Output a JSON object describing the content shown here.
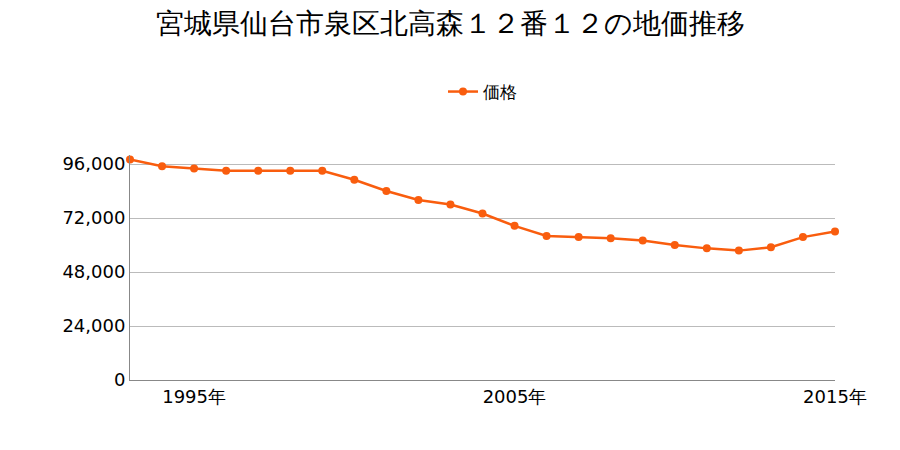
{
  "chart_data": {
    "type": "line",
    "title": "宮城県仙台市泉区北高森１２番１２の地価推移",
    "x": [
      1993,
      1994,
      1995,
      1996,
      1997,
      1998,
      1999,
      2000,
      2001,
      2002,
      2003,
      2004,
      2005,
      2006,
      2007,
      2008,
      2009,
      2010,
      2011,
      2012,
      2013,
      2014,
      2015
    ],
    "series": [
      {
        "name": "価格",
        "color": "#f95d0e",
        "marker": "circle",
        "values": [
          98000,
          95000,
          94000,
          93000,
          93000,
          93000,
          93000,
          89000,
          84000,
          80000,
          78000,
          74000,
          68500,
          64000,
          63500,
          63000,
          62000,
          60000,
          58500,
          57500,
          59000,
          63500,
          66000
        ]
      }
    ],
    "xlim": [
      1993,
      2015
    ],
    "xticks": [
      {
        "value": 1995,
        "label": "1995年"
      },
      {
        "value": 2005,
        "label": "2005年"
      },
      {
        "value": 2015,
        "label": "2015年"
      }
    ],
    "ylim": [
      0,
      100000
    ],
    "yticks": [
      0,
      {
        "value": 24000,
        "label": "24,000"
      },
      {
        "value": 48000,
        "label": "48,000"
      },
      {
        "value": 72000,
        "label": "72,000"
      },
      {
        "value": 96000,
        "label": "96,000"
      }
    ],
    "grid": true,
    "legend": "top"
  }
}
